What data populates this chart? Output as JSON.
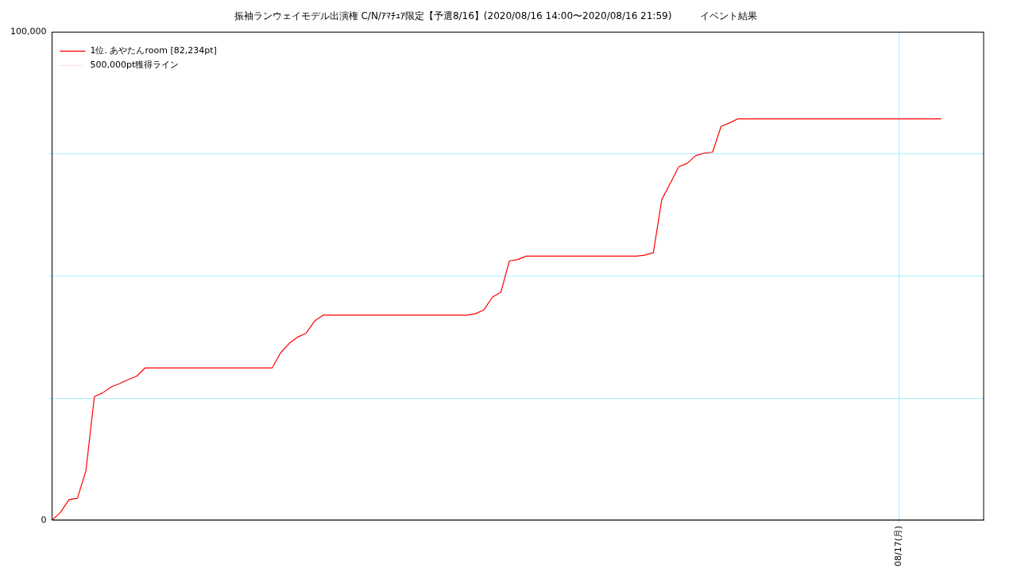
{
  "chart_data": {
    "type": "line",
    "title": "振袖ランウェイモデル出演権 C/N/ｱﾏﾁｭｱ限定【予選8/16】(2020/08/16 14:00〜2020/08/16 21:59)　　　イベント結果",
    "categories": [
      null,
      null,
      null,
      null,
      null,
      null,
      null,
      null,
      null,
      null,
      null,
      null,
      null,
      null,
      null,
      null,
      null,
      null,
      null,
      null,
      null,
      null,
      null,
      null,
      null,
      null,
      null,
      null,
      null,
      null,
      null,
      null,
      null,
      null,
      null,
      null,
      null,
      null,
      null,
      null,
      null,
      null,
      null,
      null,
      null,
      null,
      null,
      null,
      null,
      null,
      null,
      null,
      null,
      null,
      null,
      null,
      null,
      null,
      null,
      null,
      null,
      null,
      null,
      null,
      null,
      null,
      null,
      null,
      null,
      null,
      null,
      null,
      null,
      null,
      null,
      null,
      null,
      null,
      null,
      null,
      null,
      null,
      null,
      null,
      null,
      null,
      null,
      null,
      null,
      null,
      null,
      null,
      null,
      null,
      null,
      null,
      null,
      null,
      null,
      null,
      "08/17(月)",
      null,
      null,
      null,
      null,
      null,
      null,
      null,
      null,
      null,
      null
    ],
    "series": [
      {
        "name": "1位. あやたんroom [82,234pt]",
        "color": "#ff0000",
        "line_style": "solid",
        "values": [
          0,
          1600,
          4200,
          4500,
          10100,
          25300,
          26100,
          27300,
          28000,
          28800,
          29500,
          31200,
          31200,
          31200,
          31200,
          31200,
          31200,
          31200,
          31200,
          31200,
          31200,
          31200,
          31200,
          31200,
          31200,
          31200,
          31200,
          34300,
          36200,
          37500,
          38300,
          40800,
          42000,
          42000,
          42000,
          42000,
          42000,
          42000,
          42000,
          42000,
          42000,
          42000,
          42000,
          42000,
          42000,
          42000,
          42000,
          42000,
          42000,
          42000,
          42300,
          43100,
          45700,
          46700,
          53100,
          53400,
          54100,
          54100,
          54100,
          54100,
          54100,
          54100,
          54100,
          54100,
          54100,
          54100,
          54100,
          54100,
          54100,
          54100,
          54300,
          54800,
          65700,
          69000,
          72400,
          73100,
          74700,
          75200,
          75400,
          80700,
          81400,
          82234,
          82234,
          82234,
          82234,
          82234,
          82234,
          82234,
          82234,
          82234,
          82234,
          82234,
          82234,
          82234,
          82234,
          82234,
          82234,
          82234,
          82234,
          82234,
          82234,
          82234,
          82234,
          82234,
          82234,
          82234,
          null,
          null,
          null,
          null,
          null
        ]
      },
      {
        "name": "500,000pt獲得ライン",
        "color": "#ff9999",
        "line_style": "dotted",
        "values": [
          null,
          null,
          null,
          null,
          null,
          null,
          null,
          null,
          null,
          null,
          null,
          null,
          null,
          null,
          null,
          null,
          null,
          null,
          null,
          null,
          null,
          null,
          null,
          null,
          null,
          null,
          null,
          null,
          null,
          null,
          null,
          null,
          null,
          null,
          null,
          null,
          null,
          null,
          null,
          null,
          null,
          null,
          null,
          null,
          null,
          null,
          null,
          null,
          null,
          null,
          null,
          null,
          null,
          null,
          null,
          null,
          null,
          null,
          null,
          null,
          null,
          null,
          null,
          null,
          null,
          null,
          null,
          null,
          null,
          null,
          null,
          null,
          null,
          null,
          null,
          null,
          null,
          null,
          null,
          null,
          null,
          null,
          null,
          null,
          null,
          null,
          null,
          null,
          null,
          null,
          null,
          null,
          null,
          null,
          null,
          null,
          null,
          null,
          null,
          null,
          null,
          null,
          null,
          null,
          null,
          null,
          null,
          null,
          null,
          null,
          null
        ]
      }
    ],
    "ylim": [
      0,
      100000
    ],
    "yticks": [
      {
        "value": 0,
        "label": "0"
      },
      {
        "value": 25000,
        "label": null
      },
      {
        "value": 50000,
        "label": null
      },
      {
        "value": 75000,
        "label": null
      },
      {
        "value": 100000,
        "label": "100,000"
      }
    ],
    "grid": true,
    "legend": "top left",
    "marker": "none"
  }
}
